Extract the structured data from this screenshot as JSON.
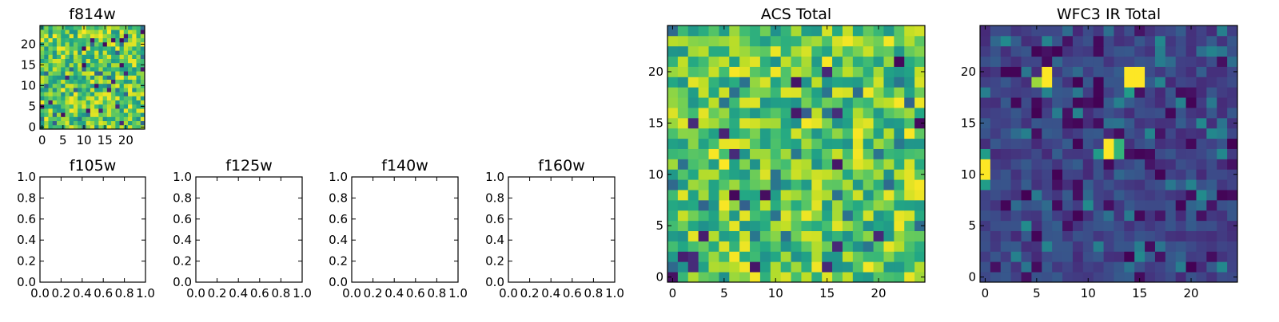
{
  "chart_data": [
    {
      "type": "heatmap",
      "title": "f814w",
      "xlim": [
        -0.5,
        24.5
      ],
      "ylim": [
        -0.5,
        24.5
      ],
      "xticks": [
        0,
        5,
        10,
        15,
        20
      ],
      "yticks": [
        0,
        5,
        10,
        15,
        20
      ],
      "grid_size": 25,
      "colormap": "viridis",
      "seed": 814,
      "pattern": "acs",
      "z_range": [
        0,
        1
      ]
    },
    {
      "type": "scatter",
      "title": "f105w",
      "xlim": [
        0,
        1
      ],
      "ylim": [
        0,
        1
      ],
      "xticks": [
        "0.0",
        "0.2",
        "0.4",
        "0.6",
        "0.8",
        "1.0"
      ],
      "yticks": [
        "0.0",
        "0.2",
        "0.4",
        "0.6",
        "0.8",
        "1.0"
      ],
      "series": []
    },
    {
      "type": "scatter",
      "title": "f125w",
      "xlim": [
        0,
        1
      ],
      "ylim": [
        0,
        1
      ],
      "xticks": [
        "0.0",
        "0.2",
        "0.4",
        "0.6",
        "0.8",
        "1.0"
      ],
      "yticks": [
        "0.0",
        "0.2",
        "0.4",
        "0.6",
        "0.8",
        "1.0"
      ],
      "series": []
    },
    {
      "type": "scatter",
      "title": "f140w",
      "xlim": [
        0,
        1
      ],
      "ylim": [
        0,
        1
      ],
      "xticks": [
        "0.0",
        "0.2",
        "0.4",
        "0.6",
        "0.8",
        "1.0"
      ],
      "yticks": [
        "0.0",
        "0.2",
        "0.4",
        "0.6",
        "0.8",
        "1.0"
      ],
      "series": []
    },
    {
      "type": "scatter",
      "title": "f160w",
      "xlim": [
        0,
        1
      ],
      "ylim": [
        0,
        1
      ],
      "xticks": [
        "0.0",
        "0.2",
        "0.4",
        "0.6",
        "0.8",
        "1.0"
      ],
      "yticks": [
        "0.0",
        "0.2",
        "0.4",
        "0.6",
        "0.8",
        "1.0"
      ],
      "series": []
    },
    {
      "type": "heatmap",
      "title": "ACS Total",
      "xlim": [
        -0.5,
        24.5
      ],
      "ylim": [
        -0.5,
        24.5
      ],
      "xticks": [
        0,
        5,
        10,
        15,
        20
      ],
      "yticks": [
        0,
        5,
        10,
        15,
        20
      ],
      "grid_size": 25,
      "colormap": "viridis",
      "seed": 2017,
      "pattern": "acs",
      "z_range": [
        0,
        1
      ]
    },
    {
      "type": "heatmap",
      "title": "WFC3 IR Total",
      "xlim": [
        -0.5,
        24.5
      ],
      "ylim": [
        -0.5,
        24.5
      ],
      "xticks": [
        0,
        5,
        10,
        15,
        20
      ],
      "yticks": [
        0,
        5,
        10,
        15,
        20
      ],
      "grid_size": 25,
      "colormap": "viridis",
      "seed": 3,
      "pattern": "ir",
      "hotspots": [
        {
          "x": 6,
          "y": 20,
          "value": 1.0
        },
        {
          "x": 6,
          "y": 19,
          "value": 1.0
        },
        {
          "x": 5,
          "y": 19,
          "value": 0.85
        },
        {
          "x": 14,
          "y": 20,
          "value": 1.0
        },
        {
          "x": 15,
          "y": 20,
          "value": 1.0
        },
        {
          "x": 14,
          "y": 19,
          "value": 1.0
        },
        {
          "x": 15,
          "y": 19,
          "value": 1.0
        },
        {
          "x": 14,
          "y": 18,
          "value": 0.55
        },
        {
          "x": 12,
          "y": 13,
          "value": 1.0
        },
        {
          "x": 12,
          "y": 12,
          "value": 1.0
        },
        {
          "x": 13,
          "y": 13,
          "value": 0.65
        },
        {
          "x": 13,
          "y": 12,
          "value": 0.65
        },
        {
          "x": 11,
          "y": 12,
          "value": 0.55
        },
        {
          "x": 0,
          "y": 11,
          "value": 1.0
        },
        {
          "x": 0,
          "y": 10,
          "value": 1.0
        },
        {
          "x": 0,
          "y": 12,
          "value": 0.55
        },
        {
          "x": 0,
          "y": 9,
          "value": 0.55
        }
      ],
      "z_range": [
        0,
        1
      ]
    }
  ]
}
